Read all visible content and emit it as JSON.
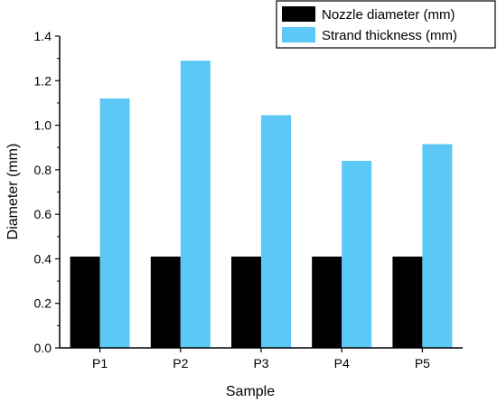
{
  "chart_data": {
    "type": "bar",
    "title": "",
    "xlabel": "Sample",
    "ylabel": "Diameter (mm)",
    "categories": [
      "P1",
      "P2",
      "P3",
      "P4",
      "P5"
    ],
    "series": [
      {
        "name": "Nozzle diameter (mm)",
        "color": "#000000",
        "values": [
          0.41,
          0.41,
          0.41,
          0.41,
          0.41
        ]
      },
      {
        "name": "Strand thickness (mm)",
        "color": "#5bc8f5",
        "values": [
          1.12,
          1.29,
          1.045,
          0.84,
          0.915
        ]
      }
    ],
    "ylim": [
      0,
      1.4
    ],
    "yticks": [
      "0.0",
      "0.2",
      "0.4",
      "0.6",
      "0.8",
      "1.0",
      "1.2",
      "1.4"
    ],
    "grid": false,
    "legend_position": "top-right"
  }
}
